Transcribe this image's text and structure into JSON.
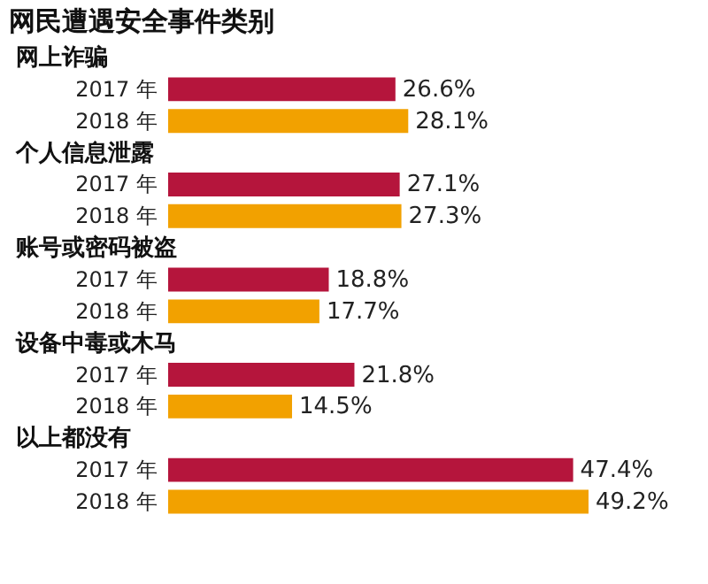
{
  "chart_data": {
    "type": "bar",
    "orientation": "horizontal",
    "title": "网民遭遇安全事件类别",
    "categories": [
      "网上诈骗",
      "个人信息泄露",
      "账号或密码被盗",
      "设备中毒或木马",
      "以上都没有"
    ],
    "series": [
      {
        "name": "2017 年",
        "color": "#b5153c",
        "values": [
          26.6,
          27.1,
          18.8,
          21.8,
          47.4
        ],
        "value_labels": [
          "26.6%",
          "27.1%",
          "18.8%",
          "21.8%",
          "47.4%"
        ]
      },
      {
        "name": "2018 年",
        "color": "#f2a100",
        "values": [
          28.1,
          27.3,
          17.7,
          14.5,
          49.2
        ],
        "value_labels": [
          "28.1%",
          "27.3%",
          "17.7%",
          "14.5%",
          "49.2%"
        ]
      }
    ],
    "legend": false
  }
}
